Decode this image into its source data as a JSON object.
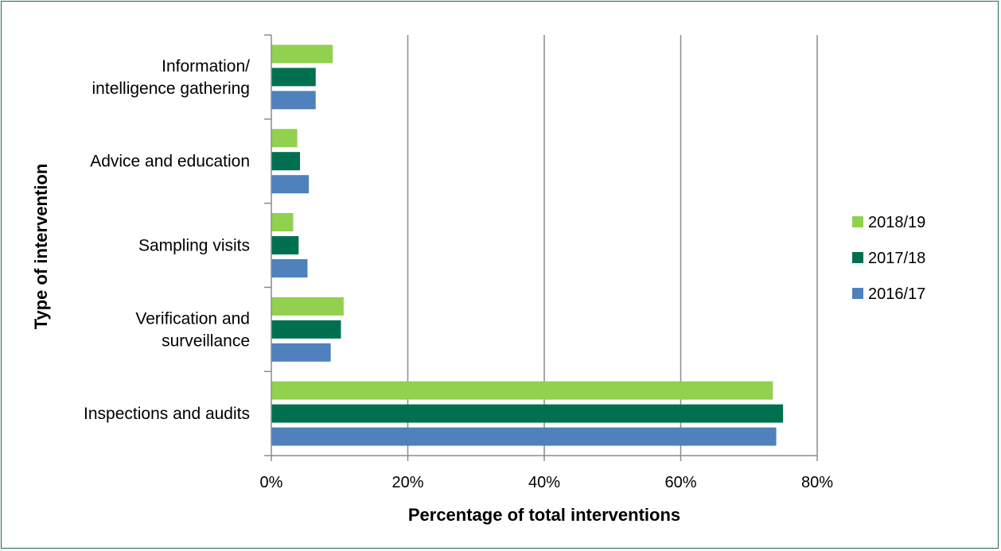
{
  "chart_data": {
    "type": "bar",
    "orientation": "horizontal",
    "categories": [
      [
        "Information/",
        "intelligence gathering"
      ],
      [
        "Advice and education"
      ],
      [
        "Sampling visits"
      ],
      [
        "Verification and",
        "surveillance"
      ],
      [
        "Inspections and audits"
      ]
    ],
    "series": [
      {
        "name": "2018/19",
        "color": "#92d050",
        "values": [
          9,
          3.8,
          3.2,
          10.6,
          73.5
        ]
      },
      {
        "name": "2017/18",
        "color": "#007050",
        "values": [
          6.5,
          4.2,
          4,
          10.2,
          75
        ]
      },
      {
        "name": "2016/17",
        "color": "#4f81bd",
        "values": [
          6.5,
          5.5,
          5.3,
          8.7,
          74
        ]
      }
    ],
    "xlim": [
      0,
      80
    ],
    "xticks": [
      0,
      20,
      40,
      60,
      80
    ],
    "tick_labels": [
      "0%",
      "20%",
      "40%",
      "60%",
      "80%"
    ],
    "xlabel": "Percentage of total interventions",
    "ylabel": "Type of intervention",
    "grid": "vertical",
    "legend_position": "right"
  }
}
